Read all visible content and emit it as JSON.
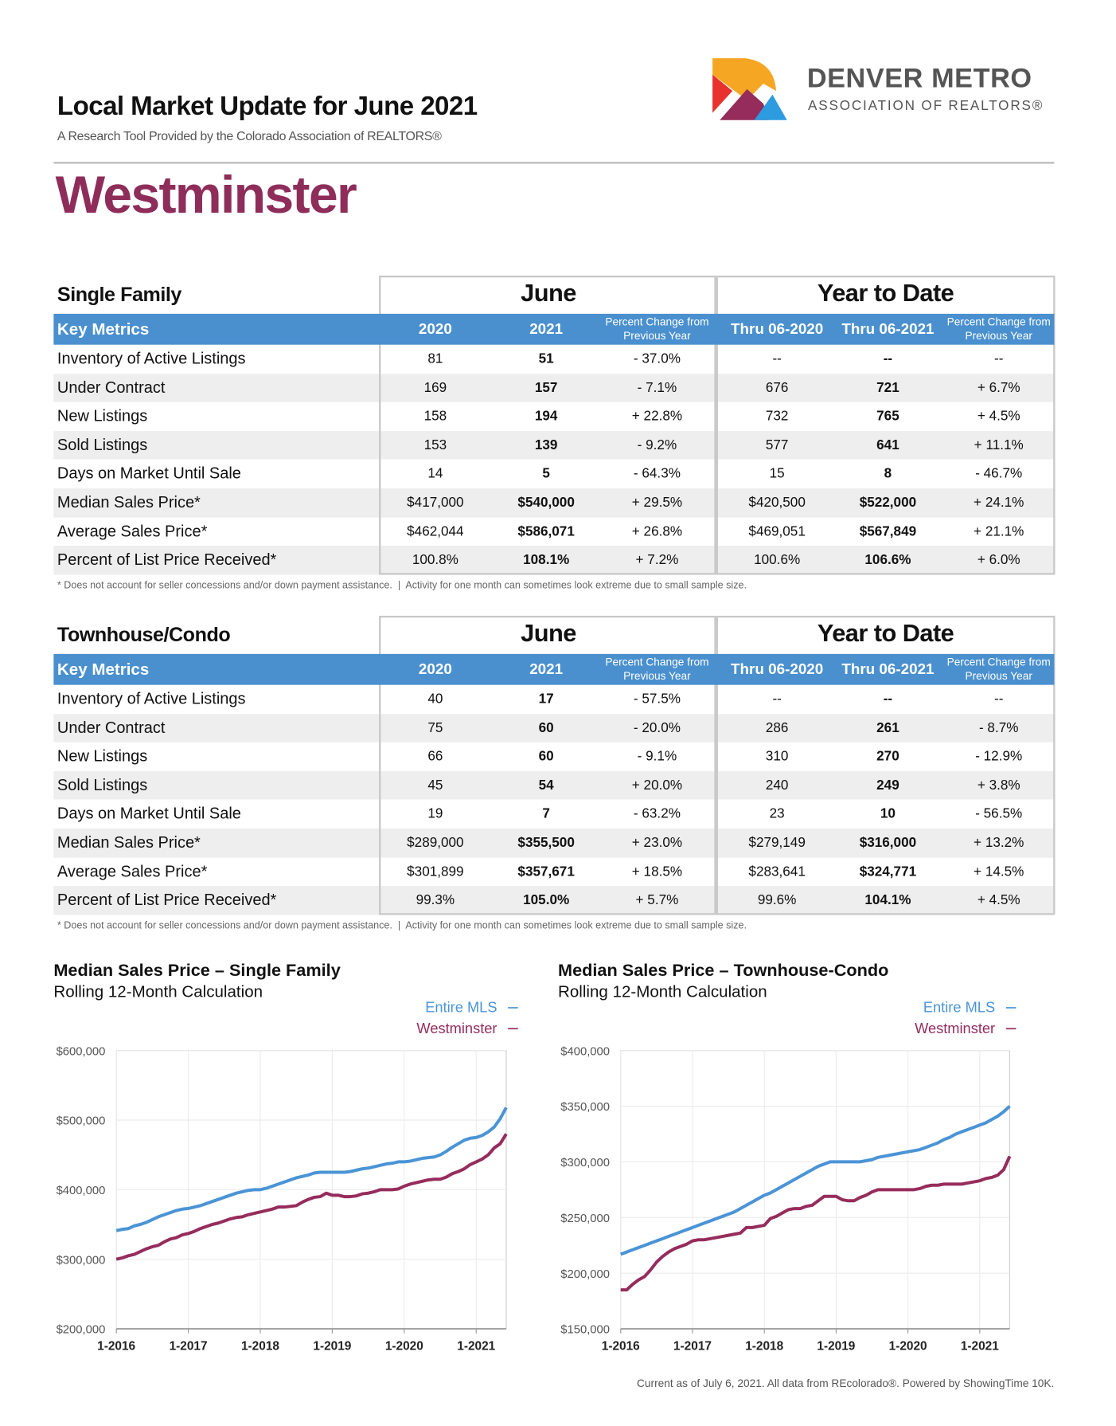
{
  "header": {
    "title": "Local Market Update for June 2021",
    "subtitle": "A Research Tool Provided by the Colorado Association of REALTORS®",
    "area": "Westminster",
    "logo_name": "DENVER METRO",
    "logo_tagline": "ASSOCIATION OF REALTORS®"
  },
  "tables": [
    {
      "title": "Single Family",
      "groups": [
        "June",
        "Year to Date"
      ],
      "columns": [
        "Key Metrics",
        "2020",
        "2021",
        "Percent Change from Previous Year",
        "Thru 06-2020",
        "Thru 06-2021",
        "Percent Change from Previous Year"
      ],
      "rows": [
        [
          "Inventory of Active Listings",
          "81",
          "51",
          "- 37.0%",
          "--",
          "--",
          "--"
        ],
        [
          "Under Contract",
          "169",
          "157",
          "- 7.1%",
          "676",
          "721",
          "+ 6.7%"
        ],
        [
          "New Listings",
          "158",
          "194",
          "+ 22.8%",
          "732",
          "765",
          "+ 4.5%"
        ],
        [
          "Sold Listings",
          "153",
          "139",
          "- 9.2%",
          "577",
          "641",
          "+ 11.1%"
        ],
        [
          "Days on Market Until Sale",
          "14",
          "5",
          "- 64.3%",
          "15",
          "8",
          "- 46.7%"
        ],
        [
          "Median Sales Price*",
          "$417,000",
          "$540,000",
          "+ 29.5%",
          "$420,500",
          "$522,000",
          "+ 24.1%"
        ],
        [
          "Average Sales Price*",
          "$462,044",
          "$586,071",
          "+ 26.8%",
          "$469,051",
          "$567,849",
          "+ 21.1%"
        ],
        [
          "Percent of List Price Received*",
          "100.8%",
          "108.1%",
          "+ 7.2%",
          "100.6%",
          "106.6%",
          "+ 6.0%"
        ]
      ],
      "footnote": "* Does not account for seller concessions and/or down payment assistance.  |  Activity for one month can sometimes look extreme due to small sample size."
    },
    {
      "title": "Townhouse/Condo",
      "groups": [
        "June",
        "Year to Date"
      ],
      "columns": [
        "Key Metrics",
        "2020",
        "2021",
        "Percent Change from Previous Year",
        "Thru 06-2020",
        "Thru 06-2021",
        "Percent Change from Previous Year"
      ],
      "rows": [
        [
          "Inventory of Active Listings",
          "40",
          "17",
          "- 57.5%",
          "--",
          "--",
          "--"
        ],
        [
          "Under Contract",
          "75",
          "60",
          "- 20.0%",
          "286",
          "261",
          "- 8.7%"
        ],
        [
          "New Listings",
          "66",
          "60",
          "- 9.1%",
          "310",
          "270",
          "- 12.9%"
        ],
        [
          "Sold Listings",
          "45",
          "54",
          "+ 20.0%",
          "240",
          "249",
          "+ 3.8%"
        ],
        [
          "Days on Market Until Sale",
          "19",
          "7",
          "- 63.2%",
          "23",
          "10",
          "- 56.5%"
        ],
        [
          "Median Sales Price*",
          "$289,000",
          "$355,500",
          "+ 23.0%",
          "$279,149",
          "$316,000",
          "+ 13.2%"
        ],
        [
          "Average Sales Price*",
          "$301,899",
          "$357,671",
          "+ 18.5%",
          "$283,641",
          "$324,771",
          "+ 14.5%"
        ],
        [
          "Percent of List Price Received*",
          "99.3%",
          "105.0%",
          "+ 5.7%",
          "99.6%",
          "104.1%",
          "+ 4.5%"
        ]
      ],
      "footnote": "* Does not account for seller concessions and/or down payment assistance.  |  Activity for one month can sometimes look extreme due to small sample size."
    }
  ],
  "chart_data": [
    {
      "type": "line",
      "title": "Median Sales Price – Single Family",
      "subtitle": "Rolling 12-Month Calculation",
      "legend": "top-right",
      "grid": true,
      "x": [
        "2016-01",
        "2016-02",
        "2016-03",
        "2016-04",
        "2016-05",
        "2016-06",
        "2016-07",
        "2016-08",
        "2016-09",
        "2016-10",
        "2016-11",
        "2016-12",
        "2017-01",
        "2017-02",
        "2017-03",
        "2017-04",
        "2017-05",
        "2017-06",
        "2017-07",
        "2017-08",
        "2017-09",
        "2017-10",
        "2017-11",
        "2017-12",
        "2018-01",
        "2018-02",
        "2018-03",
        "2018-04",
        "2018-05",
        "2018-06",
        "2018-07",
        "2018-08",
        "2018-09",
        "2018-10",
        "2018-11",
        "2018-12",
        "2019-01",
        "2019-02",
        "2019-03",
        "2019-04",
        "2019-05",
        "2019-06",
        "2019-07",
        "2019-08",
        "2019-09",
        "2019-10",
        "2019-11",
        "2019-12",
        "2020-01",
        "2020-02",
        "2020-03",
        "2020-04",
        "2020-05",
        "2020-06",
        "2020-07",
        "2020-08",
        "2020-09",
        "2020-10",
        "2020-11",
        "2020-12",
        "2021-01",
        "2021-02",
        "2021-03",
        "2021-04",
        "2021-05",
        "2021-06"
      ],
      "xticks": [
        {
          "value": "2016-01",
          "label": "1-2016"
        },
        {
          "value": "2017-01",
          "label": "1-2017"
        },
        {
          "value": "2018-01",
          "label": "1-2018"
        },
        {
          "value": "2019-01",
          "label": "1-2019"
        },
        {
          "value": "2020-01",
          "label": "1-2020"
        },
        {
          "value": "2021-01",
          "label": "1-2021"
        }
      ],
      "ylim": [
        200000,
        600000
      ],
      "yticks": [
        {
          "value": 200000,
          "label": "$200,000"
        },
        {
          "value": 300000,
          "label": "$300,000"
        },
        {
          "value": 400000,
          "label": "$400,000"
        },
        {
          "value": 500000,
          "label": "$500,000"
        },
        {
          "value": 600000,
          "label": "$600,000"
        }
      ],
      "series": [
        {
          "name": "Entire MLS",
          "color": "#4a94d6",
          "values": [
            341000,
            343000,
            344000,
            348000,
            350000,
            353000,
            357000,
            361000,
            364000,
            367000,
            370000,
            372000,
            373000,
            375000,
            377000,
            380000,
            383000,
            386000,
            389000,
            392000,
            395000,
            397000,
            399000,
            400000,
            400000,
            402000,
            405000,
            408000,
            411000,
            414000,
            417000,
            419000,
            421000,
            424000,
            425000,
            425000,
            425000,
            425000,
            425000,
            426000,
            428000,
            430000,
            431000,
            433000,
            435000,
            437000,
            438000,
            440000,
            440000,
            441000,
            443000,
            445000,
            446000,
            447000,
            450000,
            455000,
            461000,
            466000,
            471000,
            474000,
            475000,
            478000,
            483000,
            490000,
            502000,
            518000
          ]
        },
        {
          "name": "Westminster",
          "color": "#962c5c",
          "values": [
            300000,
            302000,
            305000,
            307000,
            311000,
            315000,
            318000,
            320000,
            325000,
            329000,
            331000,
            335000,
            337000,
            340000,
            344000,
            347000,
            350000,
            352000,
            355000,
            358000,
            360000,
            361000,
            364000,
            366000,
            368000,
            370000,
            372000,
            375000,
            375000,
            376000,
            377000,
            382000,
            386000,
            389000,
            390000,
            395000,
            392000,
            392000,
            390000,
            390000,
            391000,
            394000,
            395000,
            397000,
            400000,
            400000,
            400000,
            401000,
            405000,
            408000,
            410000,
            412000,
            414000,
            415000,
            415000,
            418000,
            423000,
            426000,
            430000,
            436000,
            440000,
            444000,
            450000,
            460000,
            466000,
            480000
          ]
        }
      ]
    },
    {
      "type": "line",
      "title": "Median Sales Price – Townhouse-Condo",
      "subtitle": "Rolling 12-Month Calculation",
      "legend": "top-right",
      "grid": true,
      "x": [
        "2016-01",
        "2016-02",
        "2016-03",
        "2016-04",
        "2016-05",
        "2016-06",
        "2016-07",
        "2016-08",
        "2016-09",
        "2016-10",
        "2016-11",
        "2016-12",
        "2017-01",
        "2017-02",
        "2017-03",
        "2017-04",
        "2017-05",
        "2017-06",
        "2017-07",
        "2017-08",
        "2017-09",
        "2017-10",
        "2017-11",
        "2017-12",
        "2018-01",
        "2018-02",
        "2018-03",
        "2018-04",
        "2018-05",
        "2018-06",
        "2018-07",
        "2018-08",
        "2018-09",
        "2018-10",
        "2018-11",
        "2018-12",
        "2019-01",
        "2019-02",
        "2019-03",
        "2019-04",
        "2019-05",
        "2019-06",
        "2019-07",
        "2019-08",
        "2019-09",
        "2019-10",
        "2019-11",
        "2019-12",
        "2020-01",
        "2020-02",
        "2020-03",
        "2020-04",
        "2020-05",
        "2020-06",
        "2020-07",
        "2020-08",
        "2020-09",
        "2020-10",
        "2020-11",
        "2020-12",
        "2021-01",
        "2021-02",
        "2021-03",
        "2021-04",
        "2021-05",
        "2021-06"
      ],
      "xticks": [
        {
          "value": "2016-01",
          "label": "1-2016"
        },
        {
          "value": "2017-01",
          "label": "1-2017"
        },
        {
          "value": "2018-01",
          "label": "1-2018"
        },
        {
          "value": "2019-01",
          "label": "1-2019"
        },
        {
          "value": "2020-01",
          "label": "1-2020"
        },
        {
          "value": "2021-01",
          "label": "1-2021"
        }
      ],
      "ylim": [
        150000,
        400000
      ],
      "yticks": [
        {
          "value": 150000,
          "label": "$150,000"
        },
        {
          "value": 200000,
          "label": "$200,000"
        },
        {
          "value": 250000,
          "label": "$250,000"
        },
        {
          "value": 300000,
          "label": "$300,000"
        },
        {
          "value": 350000,
          "label": "$350,000"
        },
        {
          "value": 400000,
          "label": "$400,000"
        }
      ],
      "series": [
        {
          "name": "Entire MLS",
          "color": "#4a94d6",
          "values": [
            217000,
            219000,
            221000,
            223000,
            225000,
            227000,
            229000,
            231000,
            233000,
            235000,
            237000,
            239000,
            241000,
            243000,
            245000,
            247000,
            249000,
            251000,
            253000,
            255000,
            258000,
            261000,
            264000,
            267000,
            270000,
            272000,
            275000,
            278000,
            281000,
            284000,
            287000,
            290000,
            293000,
            296000,
            298000,
            300000,
            300000,
            300000,
            300000,
            300000,
            300000,
            301000,
            302000,
            304000,
            305000,
            306000,
            307000,
            308000,
            309000,
            310000,
            311000,
            313000,
            315000,
            317000,
            320000,
            322000,
            325000,
            327000,
            329000,
            331000,
            333000,
            335000,
            338000,
            341000,
            345000,
            350000
          ]
        },
        {
          "name": "Westminster",
          "color": "#962c5c",
          "values": [
            185000,
            185000,
            190000,
            194000,
            197000,
            203000,
            210000,
            215000,
            219000,
            222000,
            224000,
            226000,
            229000,
            230000,
            230000,
            231000,
            232000,
            233000,
            234000,
            235000,
            236000,
            241000,
            241000,
            242000,
            243000,
            249000,
            251000,
            254000,
            257000,
            258000,
            258000,
            260000,
            261000,
            265000,
            269000,
            269000,
            269000,
            266000,
            265000,
            265000,
            268000,
            270000,
            273000,
            275000,
            275000,
            275000,
            275000,
            275000,
            275000,
            275000,
            276000,
            278000,
            279000,
            279000,
            280000,
            280000,
            280000,
            280000,
            281000,
            282000,
            283000,
            285000,
            286000,
            288000,
            293000,
            305000
          ]
        }
      ]
    }
  ],
  "footer": "Current as of July 6, 2021. All data from REcolorado®. Powered by ShowingTime 10K."
}
